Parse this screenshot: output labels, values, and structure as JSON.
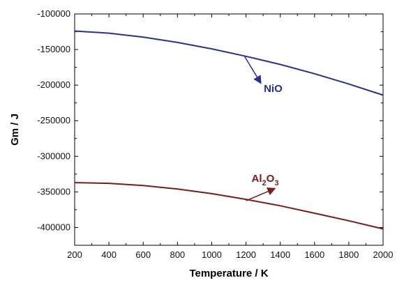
{
  "chart_data": {
    "type": "line",
    "xlabel": "Temperature / K",
    "ylabel": "Gm / J",
    "xlim": [
      200,
      2000
    ],
    "ylim": [
      -425000,
      -100000
    ],
    "x_ticks": [
      200,
      400,
      600,
      800,
      1000,
      1200,
      1400,
      1600,
      1800,
      2000
    ],
    "y_ticks": [
      -100000,
      -150000,
      -200000,
      -250000,
      -300000,
      -350000,
      -400000
    ],
    "x": [
      200,
      400,
      600,
      800,
      1000,
      1200,
      1400,
      1600,
      1800,
      2000
    ],
    "series": [
      {
        "values": [
          -124000,
          -127000,
          -132500,
          -140000,
          -149000,
          -159500,
          -171000,
          -184000,
          -198500,
          -214000
        ],
        "color": "#2b2f8f"
      },
      {
        "values": [
          -337000,
          -338000,
          -341000,
          -346000,
          -352500,
          -360500,
          -369500,
          -380000,
          -390500,
          -402000
        ],
        "color": "#7a1a1a"
      }
    ],
    "annotations": [
      {
        "text": "NiO",
        "color": "#2b2f8f",
        "arrow_to_x": 1190
      },
      {
        "text_main": "Al",
        "sub1": "2",
        "text_mid": "O",
        "sub2": "3",
        "color": "#7a1a1a",
        "arrow_to_x": 1200
      }
    ],
    "grid": false,
    "legend": "none"
  }
}
